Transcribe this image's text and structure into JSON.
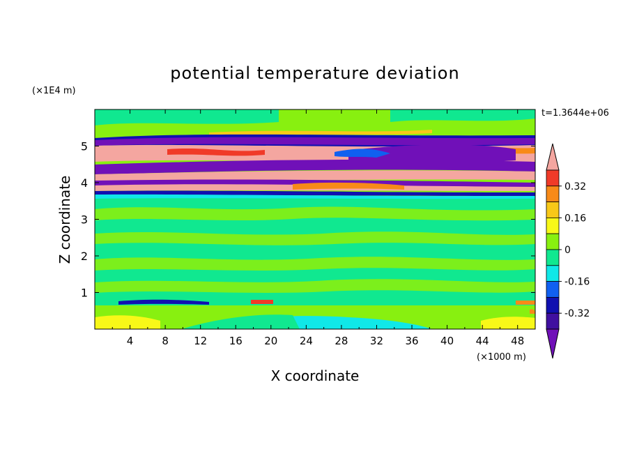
{
  "chart_data": {
    "type": "heatmap",
    "title": "potential temperature deviation",
    "xlabel": "X coordinate",
    "ylabel": "Z coordinate",
    "x_unit": "(×1000 m)",
    "y_unit": "(×1E4 m)",
    "time_label": "t=1.3644e+06",
    "xlim": [
      0,
      50
    ],
    "ylim": [
      0,
      6
    ],
    "x_ticks": [
      4,
      8,
      12,
      16,
      20,
      24,
      28,
      32,
      36,
      40,
      44,
      48
    ],
    "y_ticks": [
      1,
      2,
      3,
      4,
      5
    ],
    "colorbar": {
      "tick_labels": [
        "0.32",
        "0.16",
        "0",
        "-0.16",
        "-0.32"
      ],
      "tick_values": [
        0.32,
        0.16,
        0,
        -0.16,
        -0.32
      ],
      "levels": [
        {
          "range": "> 0.40",
          "color": "#f4a6a0"
        },
        {
          "range": "0.32 to 0.40",
          "color": "#f03a28"
        },
        {
          "range": "0.24 to 0.32",
          "color": "#f88a18"
        },
        {
          "range": "0.16 to 0.24",
          "color": "#f8c818"
        },
        {
          "range": "0.08 to 0.16",
          "color": "#f8f818"
        },
        {
          "range": "0 to 0.08",
          "color": "#88f010"
        },
        {
          "range": "-0.08 to 0",
          "color": "#10e890"
        },
        {
          "range": "-0.16 to -0.08",
          "color": "#10e8e8"
        },
        {
          "range": "-0.24 to -0.16",
          "color": "#1060f0"
        },
        {
          "range": "-0.32 to -0.24",
          "color": "#1010b0"
        },
        {
          "range": "-0.40 to -0.32",
          "color": "#4010a0"
        },
        {
          "range": "< -0.40",
          "color": "#7010b8"
        }
      ]
    },
    "bands": [
      {
        "z_range": [
          5.5,
          6.0
        ],
        "dominant_color": "#88f010",
        "description_value": "0 to 0.08"
      },
      {
        "z_range": [
          3.7,
          5.3
        ],
        "dominant_color": "#7010b8",
        "secondary_color": "#f4a6a0",
        "description_value": "alternating < -0.40 and > 0.40"
      },
      {
        "z_range": [
          0.8,
          3.6
        ],
        "dominant_color": "#10e890",
        "secondary_color": "#88f010",
        "description_value": "-0.08 to 0.08"
      },
      {
        "z_range": [
          0.0,
          0.8
        ],
        "dominant_color": "#88f010",
        "secondary_color": "#10e8e8",
        "description_value": "mixed near-zero with cyan and yellow patches"
      }
    ]
  }
}
